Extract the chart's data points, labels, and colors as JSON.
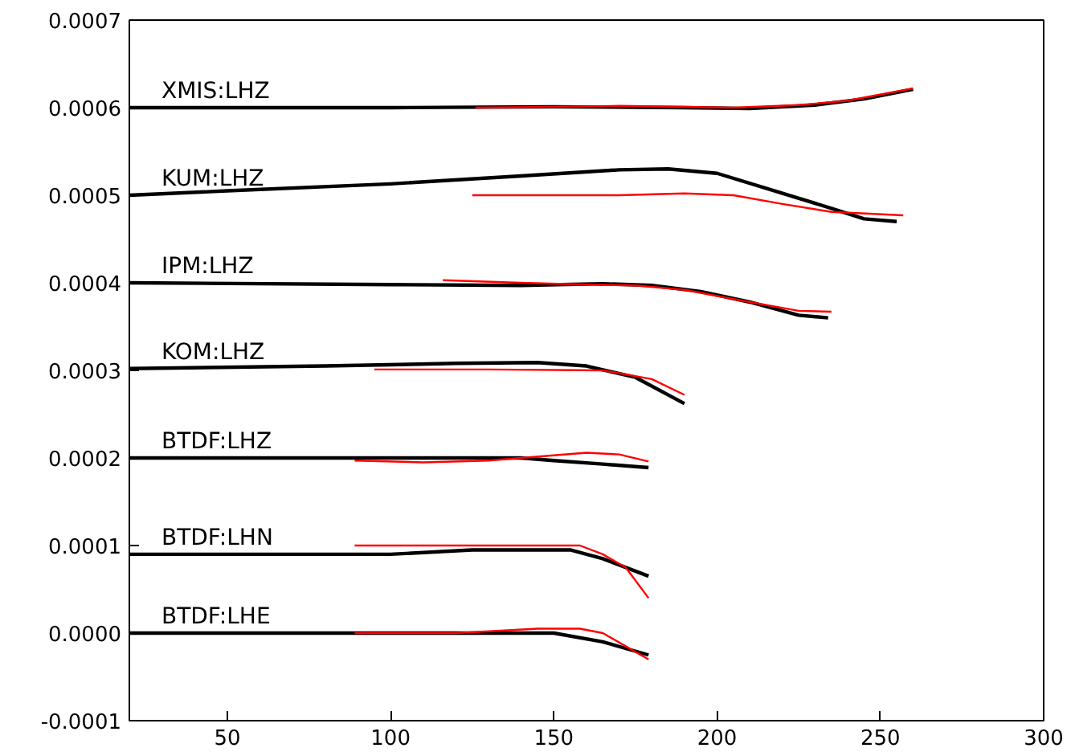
{
  "chart_data": {
    "type": "line",
    "xlim": [
      20,
      300
    ],
    "ylim": [
      -0.0001,
      0.0007
    ],
    "xticks": [
      50,
      100,
      150,
      200,
      250,
      300
    ],
    "yticks": [
      {
        "value": -0.0001,
        "label": "-0.0001"
      },
      {
        "value": 0,
        "label": "0.0000"
      },
      {
        "value": 0.0001,
        "label": "0.0001"
      },
      {
        "value": 0.0002,
        "label": "0.0002"
      },
      {
        "value": 0.0003,
        "label": "0.0003"
      },
      {
        "value": 0.0004,
        "label": "0.0004"
      },
      {
        "value": 0.0005,
        "label": "0.0005"
      },
      {
        "value": 0.0006,
        "label": "0.0006"
      },
      {
        "value": 0.0007,
        "label": "0.0007"
      }
    ],
    "grid": false,
    "marker": "none",
    "line_style": "solid",
    "series": [
      {
        "name": "XMIS:LHZ",
        "color": "#000000",
        "x": [
          20,
          100,
          150,
          190,
          210,
          230,
          245,
          260
        ],
        "values": [
          0.0006,
          0.0006,
          0.000601,
          0.0006,
          0.000599,
          0.000603,
          0.00061,
          0.000621
        ]
      },
      {
        "color": "#ff0000",
        "x": [
          126,
          150,
          170,
          205,
          225,
          240,
          260
        ],
        "values": [
          0.0006,
          0.000601,
          0.000602,
          0.0006,
          0.000603,
          0.000608,
          0.000622
        ]
      },
      {
        "name": "KUM:LHZ",
        "color": "#000000",
        "x": [
          20,
          50,
          100,
          140,
          170,
          185,
          200,
          215,
          235,
          245,
          255
        ],
        "values": [
          0.0005,
          0.000505,
          0.000513,
          0.000522,
          0.000529,
          0.00053,
          0.000525,
          0.000508,
          0.000485,
          0.000473,
          0.00047
        ]
      },
      {
        "color": "#ff0000",
        "x": [
          125,
          150,
          170,
          190,
          205,
          220,
          235,
          257
        ],
        "values": [
          0.0005,
          0.0005,
          0.0005,
          0.000502,
          0.0005,
          0.00049,
          0.000481,
          0.000477
        ]
      },
      {
        "name": "IPM:LHZ",
        "color": "#000000",
        "x": [
          20,
          100,
          140,
          165,
          180,
          195,
          210,
          225,
          234
        ],
        "values": [
          0.0004,
          0.000398,
          0.000397,
          0.000399,
          0.000397,
          0.00039,
          0.000378,
          0.000363,
          0.00036
        ]
      },
      {
        "color": "#ff0000",
        "x": [
          116,
          140,
          160,
          175,
          190,
          210,
          225,
          235
        ],
        "values": [
          0.000403,
          0.0004,
          0.000398,
          0.000397,
          0.000392,
          0.000378,
          0.000368,
          0.000367
        ]
      },
      {
        "name": "KOM:LHZ",
        "color": "#000000",
        "x": [
          20,
          80,
          120,
          145,
          160,
          175,
          190
        ],
        "values": [
          0.000302,
          0.000305,
          0.000308,
          0.000309,
          0.000305,
          0.000292,
          0.000262
        ]
      },
      {
        "color": "#ff0000",
        "x": [
          95,
          130,
          165,
          180,
          190
        ],
        "values": [
          0.000301,
          0.000301,
          0.0003,
          0.00029,
          0.000272
        ]
      },
      {
        "name": "BTDF:LHZ",
        "color": "#000000",
        "x": [
          20,
          120,
          140,
          150,
          165,
          179
        ],
        "values": [
          0.0002,
          0.0002,
          0.0002,
          0.000197,
          0.000193,
          0.000189
        ]
      },
      {
        "color": "#ff0000",
        "x": [
          89,
          110,
          130,
          150,
          160,
          170,
          179
        ],
        "values": [
          0.000197,
          0.000195,
          0.000197,
          0.000203,
          0.000206,
          0.000204,
          0.000196
        ]
      },
      {
        "name": "BTDF:LHN",
        "color": "#000000",
        "x": [
          20,
          60,
          100,
          125,
          145,
          155,
          165,
          179
        ],
        "values": [
          9e-05,
          9e-05,
          9e-05,
          9.5e-05,
          9.5e-05,
          9.5e-05,
          8.5e-05,
          6.5e-05
        ]
      },
      {
        "color": "#ff0000",
        "x": [
          89,
          150,
          158,
          165,
          172,
          179
        ],
        "values": [
          0.0001,
          0.0001,
          0.0001,
          9e-05,
          7.5e-05,
          4e-05
        ]
      },
      {
        "name": "BTDF:LHE",
        "color": "#000000",
        "x": [
          20,
          100,
          140,
          150,
          165,
          179
        ],
        "values": [
          0,
          0,
          0,
          0,
          -1e-05,
          -2.5e-05
        ]
      },
      {
        "color": "#ff0000",
        "x": [
          89,
          120,
          145,
          158,
          165,
          172,
          179
        ],
        "values": [
          0,
          0,
          5e-06,
          5e-06,
          0,
          -1.5e-05,
          -3e-05
        ]
      }
    ]
  }
}
